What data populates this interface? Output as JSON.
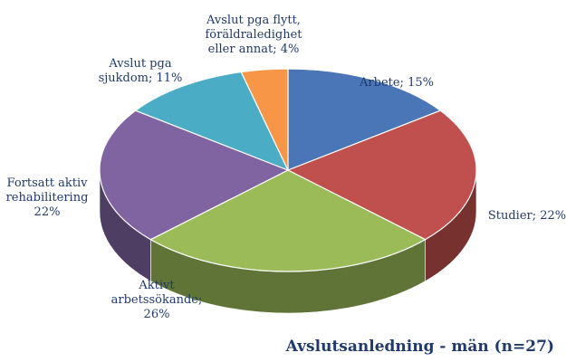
{
  "chart_data": {
    "type": "pie",
    "title": "Avslutsanledning  - män (n=27)",
    "slices": [
      {
        "label": "Arbete; 15%",
        "value": 15,
        "color": "#4a76b8"
      },
      {
        "label": "Studier; 22%",
        "value": 22,
        "color": "#c0504d"
      },
      {
        "label": "Aktivt arbetssökande; 26%",
        "value": 26,
        "color": "#9bbb59"
      },
      {
        "label": "Fortsatt aktiv rehabilitering 22%",
        "value": 22,
        "color": "#8064a2"
      },
      {
        "label": "Avslut pga sjukdom; 11%",
        "value": 11,
        "color": "#4bacc6"
      },
      {
        "label": "Avslut pga flytt, föräldraledighet eller annat; 4%",
        "value": 4,
        "color": "#f79646"
      }
    ],
    "label_lines": [
      [
        "Arbete; 15%"
      ],
      [
        "Studier; 22%"
      ],
      [
        "Aktivt",
        "arbetssökande;",
        "26%"
      ],
      [
        "Fortsatt aktiv",
        "rehabilitering",
        "22%"
      ],
      [
        "Avslut pga",
        "sjukdom; 11%"
      ],
      [
        "Avslut pga flytt,",
        "föräldraledighet",
        "eller annat; 4%"
      ]
    ]
  }
}
